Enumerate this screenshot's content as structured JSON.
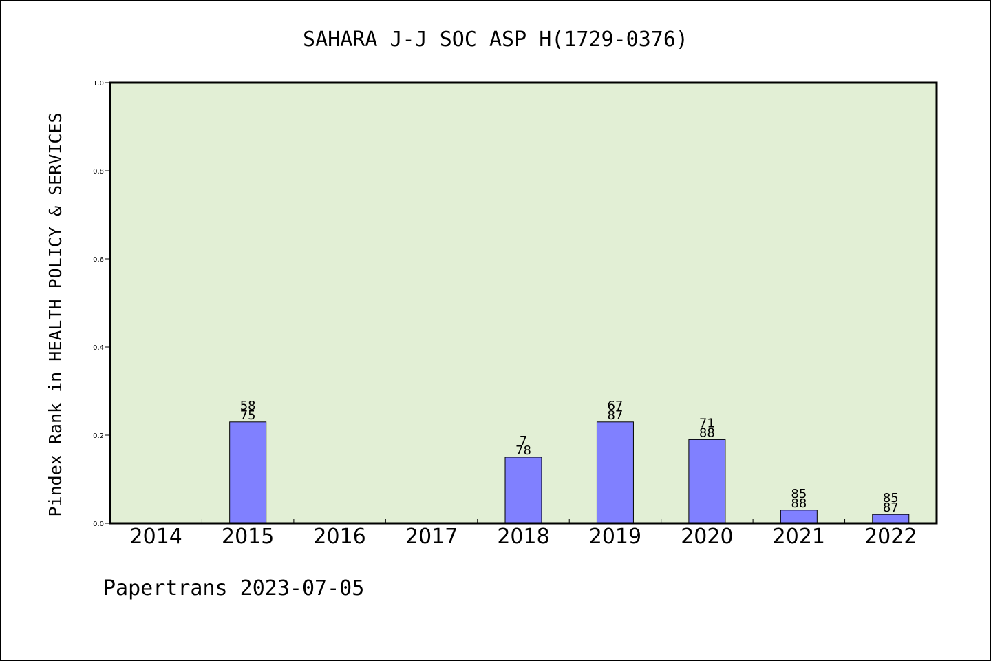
{
  "chart_data": {
    "type": "bar",
    "title": "SAHARA J-J SOC ASP H(1729-0376)",
    "ylabel": "Pindex Rank in HEALTH POLICY & SERVICES",
    "xlabel": "",
    "ylim": [
      0,
      1.0
    ],
    "yticks": [
      "0.0",
      "0.2",
      "0.4",
      "0.6",
      "0.8",
      "1.0"
    ],
    "categories": [
      "2014",
      "2015",
      "2016",
      "2017",
      "2018",
      "2019",
      "2020",
      "2021",
      "2022"
    ],
    "values": [
      0,
      0.23,
      0,
      0,
      0.15,
      0.23,
      0.19,
      0.03,
      0.02
    ],
    "bar_labels": [
      null,
      [
        "58",
        "75"
      ],
      null,
      null,
      [
        "7",
        "78"
      ],
      [
        "67",
        "87"
      ],
      [
        "71",
        "88"
      ],
      [
        "85",
        "88"
      ],
      [
        "85",
        "87"
      ]
    ],
    "grid": false,
    "colors": {
      "plot_bg": "#e2efd5",
      "bar": "#8080ff",
      "bar_edge": "#000000"
    }
  },
  "footer": "Papertrans 2023-07-05"
}
